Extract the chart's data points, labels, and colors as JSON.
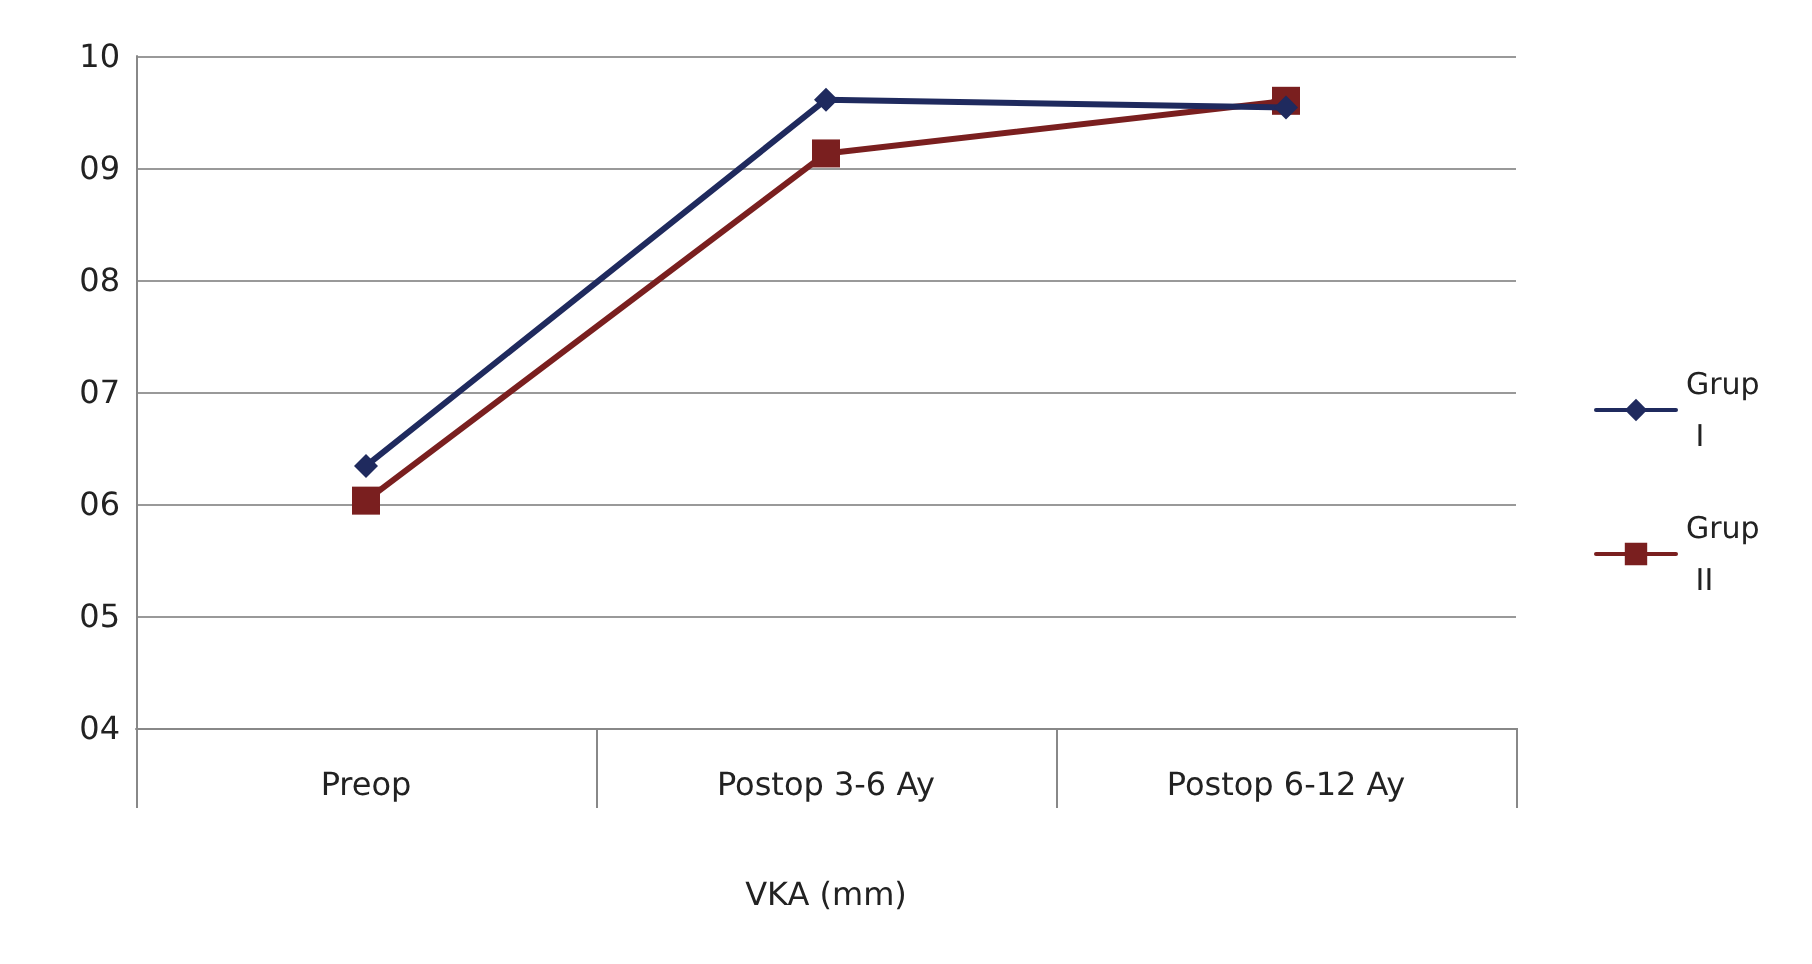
{
  "chart_data": {
    "type": "line",
    "xlabel": "VKA (mm)",
    "categories": [
      "Preop",
      "Postop 3-6 Ay",
      "Postop 6-12 Ay"
    ],
    "series": [
      {
        "name": "Grup I",
        "color": "#1f2a5e",
        "marker": "diamond",
        "values": [
          6.34,
          9.61,
          9.54
        ]
      },
      {
        "name": "Grup II",
        "color": "#7a1f1f",
        "marker": "square",
        "values": [
          6.03,
          9.13,
          9.6
        ]
      }
    ],
    "ylim": [
      4,
      10
    ],
    "yticks": [
      {
        "value": 4,
        "label": "04"
      },
      {
        "value": 5,
        "label": "05"
      },
      {
        "value": 6,
        "label": "06"
      },
      {
        "value": 7,
        "label": "07"
      },
      {
        "value": 8,
        "label": "08"
      },
      {
        "value": 9,
        "label": "09"
      },
      10
    ],
    "grid": "y",
    "legend": "right",
    "line_style": "solid"
  }
}
